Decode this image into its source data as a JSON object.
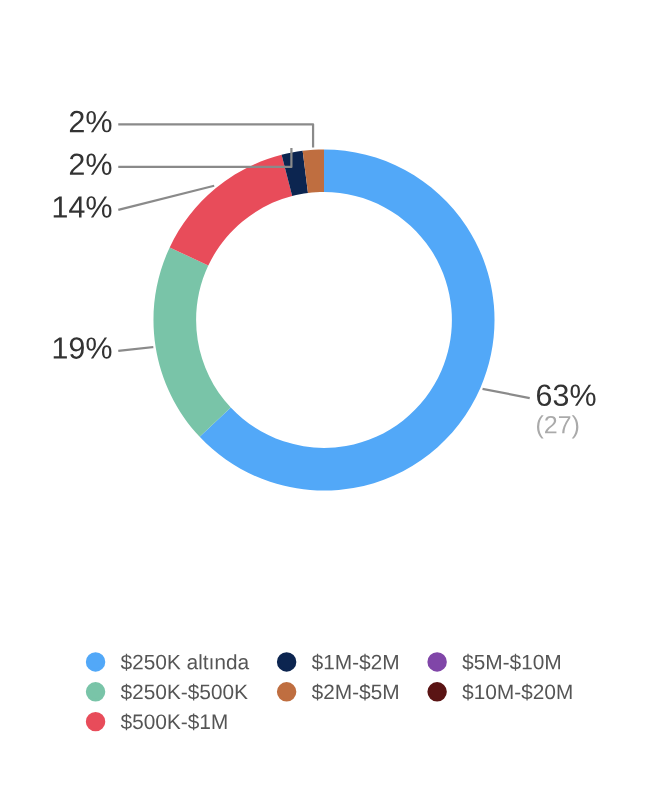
{
  "chart_data": {
    "type": "donut",
    "categories": [
      "$250K altında",
      "$250K-$500K",
      "$500K-$1M",
      "$1M-$2M",
      "$2M-$5M",
      "$5M-$10M",
      "$10M-$20M"
    ],
    "values": [
      63,
      19,
      14,
      2,
      2,
      0,
      0
    ],
    "colors": [
      "#52a8f8",
      "#79c4a8",
      "#e84c5a",
      "#0c2550",
      "#bf6e40",
      "#8046a8",
      "#5a1414"
    ],
    "value_labels": [
      "63%",
      "19%",
      "14%",
      "2%",
      "2%",
      null,
      null
    ],
    "annotations": [
      "(27)"
    ],
    "legend": "bottom"
  }
}
